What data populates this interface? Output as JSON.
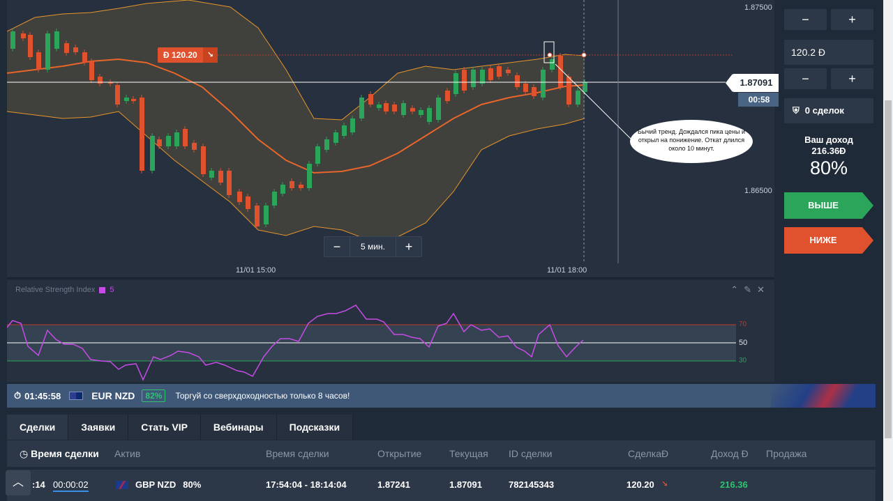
{
  "chart": {
    "price_top": "1.87500",
    "price_bottom": "1.86500",
    "current_price": "1.87091",
    "countdown": "00:58",
    "deal_marker_amount": "Ð 120.20",
    "deal_marker_arrow": "↘",
    "annotation": "Бычий тренд. Дождался пика цены и открыл на понижение. Откат длился около 10 минут.",
    "timeframe": "5 мин.",
    "time_labels": [
      "11/01 15:00",
      "11/01 18:00"
    ],
    "colors": {
      "up": "#2aa55a",
      "down": "#e0512e",
      "band": "#e8962a",
      "ma": "#e8662a"
    }
  },
  "rsi": {
    "title": "Relative Strength Index",
    "period": "5",
    "levels": [
      "70",
      "50",
      "30"
    ],
    "color": "#c74ce6"
  },
  "sidebar": {
    "minus": "−",
    "plus": "+",
    "amount": "120.2 Ð",
    "deals_count": "0 сделок",
    "income_label": "Ваш доход",
    "income_value": "216.36Ð",
    "income_pct": "80%",
    "up_label": "ВЫШЕ",
    "down_label": "НИЖЕ"
  },
  "promo": {
    "timer": "01:45:58",
    "pair": "EUR NZD",
    "pct": "82%",
    "message": "Торгуй со сверхдоходностью только 8 часов!"
  },
  "tabs": [
    "Сделки",
    "Заявки",
    "Стать VIP",
    "Вебинары",
    "Подсказки"
  ],
  "table": {
    "headers": [
      "Время сделки",
      "Актив",
      "Время сделки",
      "Открытие",
      "Текущая",
      "ID сделки",
      "СделкаÐ",
      "Доход Ð",
      "Продажа"
    ],
    "row": {
      "time_left_partial": ":14",
      "remaining": "00:00:02",
      "asset": "GBP NZD",
      "asset_pct": "80%",
      "period": "17:54:04 - 18:14:04",
      "open": "1.87241",
      "current": "1.87091",
      "id": "782145343",
      "amount": "120.20",
      "amount_arrow": "↘",
      "income": "216.36"
    }
  }
}
